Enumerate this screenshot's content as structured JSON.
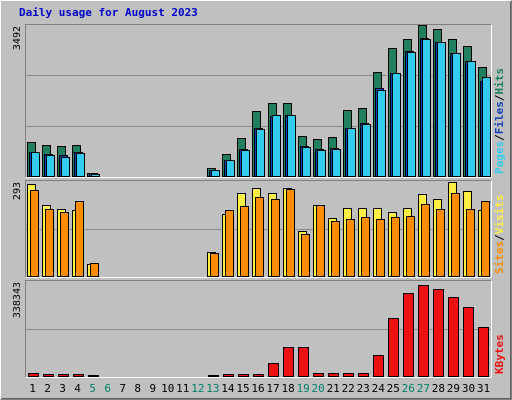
{
  "chart_data": {
    "type": "bar",
    "title": "Daily usage for August 2023",
    "days": [
      "1",
      "2",
      "3",
      "4",
      "5",
      "6",
      "7",
      "8",
      "9",
      "10",
      "11",
      "12",
      "13",
      "14",
      "15",
      "16",
      "17",
      "18",
      "19",
      "20",
      "21",
      "22",
      "23",
      "24",
      "25",
      "26",
      "27",
      "28",
      "29",
      "30",
      "31"
    ],
    "weekend_days": [
      "5",
      "6",
      "12",
      "13",
      "19",
      "20",
      "26",
      "27"
    ],
    "panels": [
      {
        "name": "hits-files-pages",
        "ymax": 3492,
        "ymax_label": "3492",
        "legend": [
          "Pages",
          "Files",
          "Hits"
        ],
        "series": [
          {
            "name": "Hits",
            "color": "#1f7f5f",
            "values": [
              790,
              730,
              710,
              740,
              90,
              0,
              0,
              0,
              0,
              0,
              0,
              0,
              210,
              520,
              900,
              1500,
              1700,
              1680,
              930,
              860,
              910,
              1530,
              1570,
              2400,
              2950,
              3140,
              3480,
              3380,
              3140,
              2980,
              2500
            ]
          },
          {
            "name": "Files",
            "color": "#0d3fb5",
            "values": [
              580,
              520,
              500,
              560,
              80,
              0,
              0,
              0,
              0,
              0,
              0,
              0,
              170,
              390,
              640,
              1120,
              1390,
              1420,
              700,
              630,
              660,
              1120,
              1240,
              2030,
              2380,
              2880,
              3170,
              3080,
              2830,
              2640,
              2200
            ]
          },
          {
            "name": "Pages",
            "color": "#33ccee",
            "values": [
              560,
              510,
              460,
              550,
              70,
              0,
              0,
              0,
              0,
              0,
              0,
              0,
              160,
              380,
              620,
              1100,
              1420,
              1420,
              690,
              620,
              640,
              1110,
              1210,
              1990,
              2380,
              2860,
              3150,
              3070,
              2830,
              2650,
              2280
            ]
          }
        ]
      },
      {
        "name": "visits-sites",
        "ymax": 293,
        "ymax_label": "293",
        "legend": [
          "Sites",
          "Visits"
        ],
        "series": [
          {
            "name": "Visits",
            "color": "#ffee44",
            "values": [
              282,
              218,
              206,
              202,
              38,
              0,
              0,
              0,
              0,
              0,
              0,
              0,
              76,
              191,
              253,
              270,
              255,
              270,
              138,
              216,
              179,
              207,
              208,
              207,
              197,
              207,
              250,
              237,
              288,
              259,
              201
            ]
          },
          {
            "name": "Sites",
            "color": "#ff8c00",
            "values": [
              262,
              206,
              196,
              230,
              42,
              0,
              0,
              0,
              0,
              0,
              0,
              0,
              73,
              201,
              213,
              243,
              236,
              266,
              129,
              216,
              170,
              176,
              181,
              175,
              182,
              185,
              221,
              205,
              255,
              206,
              231
            ]
          }
        ]
      },
      {
        "name": "kbytes",
        "ymax": 338343,
        "ymax_label": "338343",
        "legend": [
          "KBytes"
        ],
        "series": [
          {
            "name": "KBytes",
            "color": "#ee1111",
            "values": [
              14000,
              12000,
              12000,
              12000,
              5000,
              0,
              0,
              0,
              0,
              0,
              0,
              0,
              7000,
              12000,
              12000,
              12000,
              50000,
              105000,
              103000,
              15000,
              15000,
              15000,
              15000,
              78000,
              205000,
              292000,
              322000,
              308000,
              278000,
              245000,
              173000
            ]
          }
        ]
      }
    ],
    "colors": {
      "background": "#c0c0c0",
      "plot_background": "#c0c0c0",
      "title": "#0000cc",
      "weekday_label": "#000000",
      "weekend_label": "#00806a",
      "legend_slash": "#000000"
    }
  }
}
